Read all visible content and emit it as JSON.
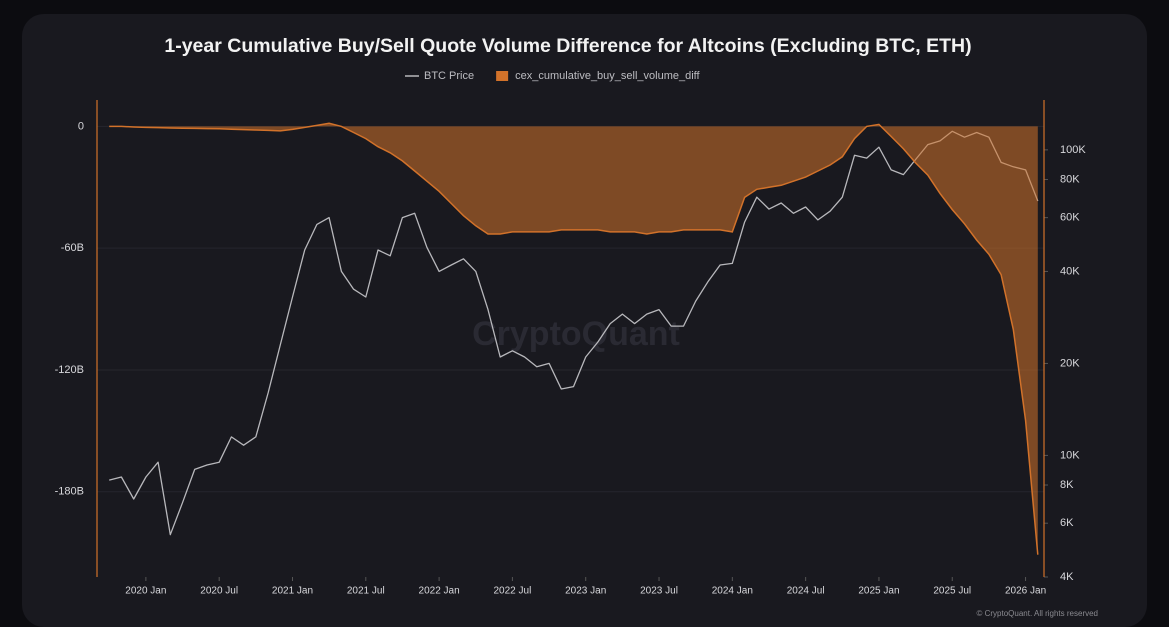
{
  "chart_data": {
    "type": "area-line",
    "title": "1-year Cumulative Buy/Sell Quote Volume Difference for Altcoins (Excluding BTC, ETH)",
    "watermark": "CryptoQuant",
    "credit": "© CryptoQuant. All rights reserved",
    "x": [
      "2019-10",
      "2019-11",
      "2019-12",
      "2020-01",
      "2020-02",
      "2020-03",
      "2020-04",
      "2020-05",
      "2020-06",
      "2020-07",
      "2020-08",
      "2020-09",
      "2020-10",
      "2020-11",
      "2020-12",
      "2021-01",
      "2021-02",
      "2021-03",
      "2021-04",
      "2021-05",
      "2021-06",
      "2021-07",
      "2021-08",
      "2021-09",
      "2021-10",
      "2021-11",
      "2021-12",
      "2022-01",
      "2022-02",
      "2022-03",
      "2022-04",
      "2022-05",
      "2022-06",
      "2022-07",
      "2022-08",
      "2022-09",
      "2022-10",
      "2022-11",
      "2022-12",
      "2023-01",
      "2023-02",
      "2023-03",
      "2023-04",
      "2023-05",
      "2023-06",
      "2023-07",
      "2023-08",
      "2023-09",
      "2023-10",
      "2023-11",
      "2023-12",
      "2024-01",
      "2024-02",
      "2024-03",
      "2024-04",
      "2024-05",
      "2024-06",
      "2024-07",
      "2024-08",
      "2024-09",
      "2024-10",
      "2024-11",
      "2024-12",
      "2025-01",
      "2025-02",
      "2025-03",
      "2025-04",
      "2025-05",
      "2025-06",
      "2025-07",
      "2025-08",
      "2025-09",
      "2025-10",
      "2025-11",
      "2025-12",
      "2026-01",
      "2026-02"
    ],
    "xlim": [
      "2019-09",
      "2026-03"
    ],
    "xticks": [
      {
        "value": "2020-01",
        "label": "2020 Jan"
      },
      {
        "value": "2020-07",
        "label": "2020 Jul"
      },
      {
        "value": "2021-01",
        "label": "2021 Jan"
      },
      {
        "value": "2021-07",
        "label": "2021 Jul"
      },
      {
        "value": "2022-01",
        "label": "2022 Jan"
      },
      {
        "value": "2022-07",
        "label": "2022 Jul"
      },
      {
        "value": "2023-01",
        "label": "2023 Jan"
      },
      {
        "value": "2023-07",
        "label": "2023 Jul"
      },
      {
        "value": "2024-01",
        "label": "2024 Jan"
      },
      {
        "value": "2024-07",
        "label": "2024 Jul"
      },
      {
        "value": "2025-01",
        "label": "2025 Jan"
      },
      {
        "value": "2025-07",
        "label": "2025 Jul"
      },
      {
        "value": "2026-01",
        "label": "2026 Jan"
      }
    ],
    "ylim": [
      -222,
      13
    ],
    "yticks": [
      0,
      {
        "value": -60,
        "label": "-60B"
      },
      {
        "value": -120,
        "label": "-120B"
      },
      {
        "value": -180,
        "label": "-180B"
      }
    ],
    "y2lim": [
      4000,
      145600
    ],
    "y2log": true,
    "y2ticks": [
      {
        "value": 4000,
        "label": "4K"
      },
      {
        "value": 6000,
        "label": "6K"
      },
      {
        "value": 8000,
        "label": "8K"
      },
      {
        "value": 10000,
        "label": "10K"
      },
      {
        "value": 20000,
        "label": "20K"
      },
      {
        "value": 40000,
        "label": "40K"
      },
      {
        "value": 60000,
        "label": "60K"
      },
      {
        "value": 80000,
        "label": "80K"
      },
      {
        "value": 100000,
        "label": "100K"
      }
    ],
    "grid": true,
    "series": [
      {
        "name": "BTC Price",
        "color": "#b8b8bc",
        "axis": "y2",
        "values": [
          8300,
          8500,
          7200,
          8500,
          9500,
          5500,
          7000,
          9000,
          9300,
          9500,
          11500,
          10800,
          11500,
          16000,
          23000,
          33000,
          47000,
          57000,
          60000,
          40000,
          35000,
          33000,
          47000,
          45000,
          60000,
          62000,
          48000,
          40000,
          42000,
          44000,
          40000,
          30000,
          21000,
          22000,
          21000,
          19500,
          20000,
          16500,
          16800,
          21000,
          23500,
          27000,
          29000,
          27000,
          29000,
          30000,
          26500,
          26500,
          32000,
          37000,
          42000,
          42500,
          58000,
          70000,
          64000,
          67000,
          62000,
          65000,
          59000,
          63000,
          70000,
          96000,
          94000,
          102000,
          86000,
          83000,
          93000,
          104000,
          107000,
          115000,
          110000,
          114000,
          110000,
          91000,
          88000,
          86000,
          68000
        ]
      },
      {
        "name": "cex_cumulative_buy_sell_volume_diff",
        "color": "#d2722a",
        "axis": "y",
        "values": [
          0,
          0,
          -0.3,
          -0.5,
          -0.6,
          -0.8,
          -0.9,
          -1,
          -1.1,
          -1.2,
          -1.4,
          -1.6,
          -1.8,
          -2,
          -2.2,
          -1.5,
          -0.5,
          0.5,
          1.5,
          0,
          -3,
          -6,
          -10,
          -13,
          -17,
          -22,
          -27,
          -32,
          -38,
          -44,
          -49,
          -53,
          -53,
          -52,
          -52,
          -52,
          -52,
          -51,
          -51,
          -51,
          -51,
          -52,
          -52,
          -52,
          -53,
          -52,
          -52,
          -51,
          -51,
          -51,
          -51,
          -52,
          -35,
          -31,
          -30,
          -29,
          -27,
          -25,
          -22,
          -19,
          -15,
          -6,
          0,
          1,
          -5,
          -11,
          -18,
          -24,
          -33,
          -41,
          -48,
          -56,
          -63,
          -73,
          -100,
          -145,
          -211
        ]
      }
    ]
  }
}
